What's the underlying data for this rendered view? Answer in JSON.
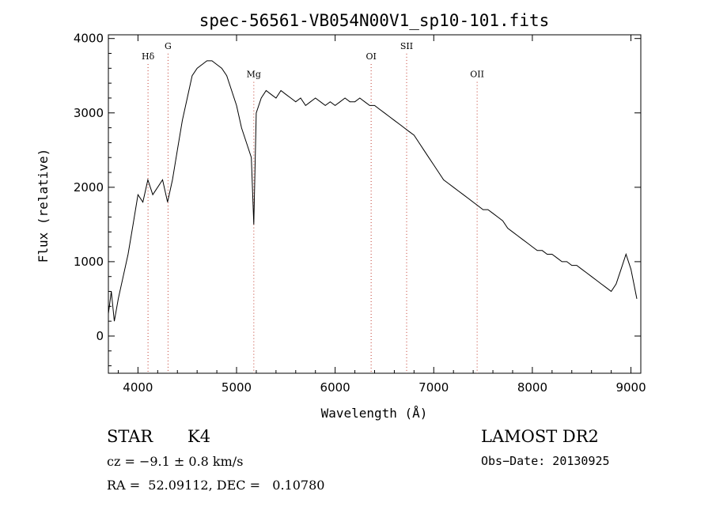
{
  "chart_data": {
    "type": "line",
    "title": "spec-56561-VB054N00V1_sp10-101.fits",
    "xlabel": "Wavelength (Å)",
    "ylabel": "Flux (relative)",
    "xlim": [
      3700,
      9100
    ],
    "ylim": [
      -500,
      4050
    ],
    "x_ticks": [
      4000,
      5000,
      6000,
      7000,
      8000,
      9000
    ],
    "y_ticks": [
      0,
      1000,
      2000,
      3000,
      4000
    ],
    "grid": false,
    "line_color": "#000000",
    "marker_color": "#c0392b",
    "lines": [
      {
        "label": "Hδ",
        "x": 4102,
        "label_y": 3720
      },
      {
        "label": "G",
        "x": 4305,
        "label_y": 3860
      },
      {
        "label": "Mg",
        "x": 5175,
        "label_y": 3480
      },
      {
        "label": "OI",
        "x": 6365,
        "label_y": 3720
      },
      {
        "label": "SII",
        "x": 6725,
        "label_y": 3860
      },
      {
        "label": "OII",
        "x": 7440,
        "label_y": 3480
      }
    ],
    "series": [
      {
        "x": [
          3700,
          3730,
          3760,
          3800,
          3850,
          3900,
          3950,
          4000,
          4050,
          4100,
          4150,
          4200,
          4250,
          4300,
          4350,
          4400,
          4450,
          4500,
          4550,
          4600,
          4650,
          4700,
          4750,
          4800,
          4850,
          4900,
          4950,
          5000,
          5050,
          5100,
          5150,
          5175,
          5200,
          5250,
          5300,
          5350,
          5400,
          5450,
          5500,
          5550,
          5600,
          5650,
          5700,
          5750,
          5800,
          5850,
          5900,
          5950,
          6000,
          6050,
          6100,
          6150,
          6200,
          6250,
          6300,
          6350,
          6400,
          6450,
          6500,
          6550,
          6600,
          6650,
          6700,
          6750,
          6800,
          6850,
          6900,
          6950,
          7000,
          7050,
          7100,
          7150,
          7200,
          7250,
          7300,
          7350,
          7400,
          7450,
          7500,
          7550,
          7600,
          7650,
          7700,
          7750,
          7800,
          7850,
          7900,
          7950,
          8000,
          8050,
          8100,
          8150,
          8200,
          8250,
          8300,
          8350,
          8400,
          8450,
          8500,
          8550,
          8600,
          8650,
          8700,
          8750,
          8800,
          8850,
          8900,
          8950,
          9000,
          9030,
          9060
        ],
        "values": [
          300,
          600,
          200,
          500,
          800,
          1100,
          1500,
          1900,
          1800,
          2100,
          1900,
          2000,
          2100,
          1800,
          2100,
          2500,
          2900,
          3200,
          3500,
          3600,
          3650,
          3700,
          3700,
          3650,
          3600,
          3500,
          3300,
          3100,
          2800,
          2600,
          2400,
          1500,
          3000,
          3200,
          3300,
          3250,
          3200,
          3300,
          3250,
          3200,
          3150,
          3200,
          3100,
          3150,
          3200,
          3150,
          3100,
          3150,
          3100,
          3150,
          3200,
          3150,
          3150,
          3200,
          3150,
          3100,
          3100,
          3050,
          3000,
          2950,
          2900,
          2850,
          2800,
          2750,
          2700,
          2600,
          2500,
          2400,
          2300,
          2200,
          2100,
          2050,
          2000,
          1950,
          1900,
          1850,
          1800,
          1750,
          1700,
          1700,
          1650,
          1600,
          1550,
          1450,
          1400,
          1350,
          1300,
          1250,
          1200,
          1150,
          1150,
          1100,
          1100,
          1050,
          1000,
          1000,
          950,
          950,
          900,
          850,
          800,
          750,
          700,
          650,
          600,
          700,
          900,
          1100,
          900,
          700,
          500
        ]
      }
    ]
  },
  "info": {
    "object_class": "STAR",
    "subclass": "K4",
    "survey": "LAMOST DR2",
    "cz": "cz = −9.1 ± 0.8 km/s",
    "obs_date": "Obs−Date: 20130925",
    "radec": "RA =  52.09112, DEC =   0.10780"
  }
}
